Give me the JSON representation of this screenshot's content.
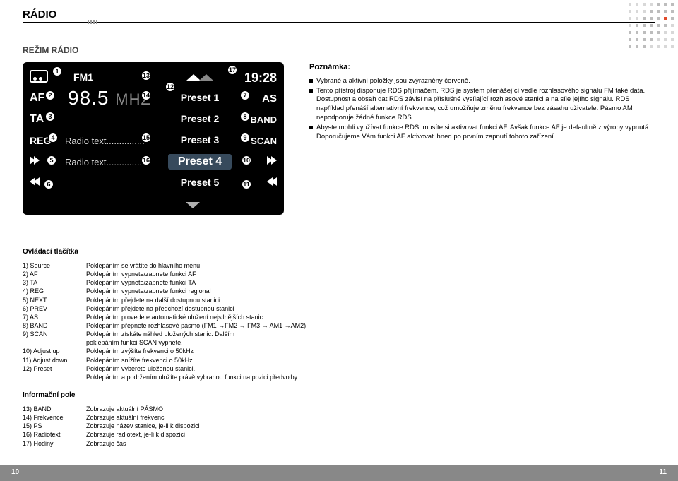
{
  "page": {
    "title": "RÁDIO",
    "subtitle": "REŽIM RÁDIO",
    "left_page_num": "10",
    "right_page_num": "11"
  },
  "radio": {
    "band": "FM1",
    "clock": "19:28",
    "frequency_num": "98.5",
    "frequency_unit": "MHZ",
    "left_buttons": {
      "af": "AF",
      "ta": "TA",
      "reg": "REG"
    },
    "right_buttons": {
      "as": "AS",
      "band": "BAND",
      "scan": "SCAN"
    },
    "presets": [
      "Preset 1",
      "Preset 2",
      "Preset 3",
      "Preset 4",
      "Preset 5"
    ],
    "radiotext1": "Radio text...............",
    "radiotext2": "Radio text...............",
    "badges": {
      "1": "1",
      "2": "2",
      "3": "3",
      "4": "4",
      "5": "5",
      "6": "6",
      "7": "7",
      "8": "8",
      "9": "9",
      "10": "10",
      "11": "11",
      "12": "12",
      "13": "13",
      "14": "14",
      "15": "15",
      "16": "16",
      "17": "17"
    }
  },
  "notes": {
    "heading": "Poznámka:",
    "items": [
      "Vybrané a aktivní položky jsou zvýrazněny červeně.",
      "Tento přístroj disponuje RDS přijímačem. RDS je systém přenášející vedle rozhlasového signálu FM také data. Dostupnost a obsah dat RDS závisí na příslušné vysílající rozhlasové stanici a na síle jejího signálu. RDS například přenáší alternativní frekvence, což umožňuje změnu frekvence bez zásahu uživatele. Pásmo AM nepodporuje žádné funkce RDS.",
      "Abyste mohli využívat funkce RDS, musíte si aktivovat funkci AF. Avšak funkce AF je defaultně z výroby vypnutá. Doporučujeme Vám funkci AF aktivovat ihned po prvním zapnutí tohoto zařízení."
    ]
  },
  "controls": {
    "heading": "Ovládací tlačítka",
    "rows": [
      {
        "n": "1)",
        "k": "Source",
        "v": "Poklepáním se vrátíte do hlavního menu"
      },
      {
        "n": "2)",
        "k": "AF",
        "v": "Poklepáním vypnete/zapnete funkci AF"
      },
      {
        "n": "3)",
        "k": "TA",
        "v": "Poklepáním vypnete/zapnete funkci TA"
      },
      {
        "n": "4)",
        "k": "REG",
        "v": "Poklepáním vypnete/zapnete funkci regional"
      },
      {
        "n": "5)",
        "k": "NEXT",
        "v": "Poklepáním přejdete na další dostupnou stanici"
      },
      {
        "n": "6)",
        "k": "PREV",
        "v": "Poklepáním přejdete na předchozí dostupnou stanici"
      },
      {
        "n": "7)",
        "k": "AS",
        "v": "Poklepáním provedete automatické uložení nejsilnějších stanic"
      },
      {
        "n": "8)",
        "k": "BAND",
        "v": "Poklepáním přepnete rozhlasové pásmo (FM1 →FM2 → FM3 → AM1 →AM2)"
      },
      {
        "n": "9)",
        "k": "SCAN",
        "v": "Poklepáním získáte náhled uložených stanic. Dalším"
      },
      {
        "n": "",
        "k": "",
        "v": "poklepáním funkci SCAN vypnete."
      },
      {
        "n": "10)",
        "k": "Adjust up",
        "v": "Poklepáním zvýšíte frekvenci o 50kHz"
      },
      {
        "n": "11)",
        "k": "Adjust down",
        "v": "Poklepáním snížíte frekvenci o 50kHz"
      },
      {
        "n": "12)",
        "k": "Preset",
        "v": "Poklepáním vyberete uloženou stanici."
      },
      {
        "n": "",
        "k": "",
        "v": "Poklepáním a podržením uložíte právě vybranou funkci na pozici předvolby"
      }
    ]
  },
  "info": {
    "heading": "Informační pole",
    "rows": [
      {
        "n": "13)",
        "k": "BAND",
        "v": "Zobrazuje aktuální PÁSMO"
      },
      {
        "n": "14)",
        "k": "Frekvence",
        "v": "Zobrazuje aktuální frekvenci"
      },
      {
        "n": "15)",
        "k": "PS",
        "v": "Zobrazuje název stanice, je-li k dispozici"
      },
      {
        "n": "16)",
        "k": "Radiotext",
        "v": "Zobrazuje radiotext, je-li k dispozici"
      },
      {
        "n": "17)",
        "k": "Hodiny",
        "v": "Zobrazuje čas"
      }
    ]
  },
  "colors": {
    "page_bg": "#ffffff",
    "radio_bg": "#000000",
    "preset_selected_bg": "#374a5c",
    "footer_bg": "#888888",
    "divider": "#aaaaaa",
    "accent_dot": "#e24a2a"
  }
}
